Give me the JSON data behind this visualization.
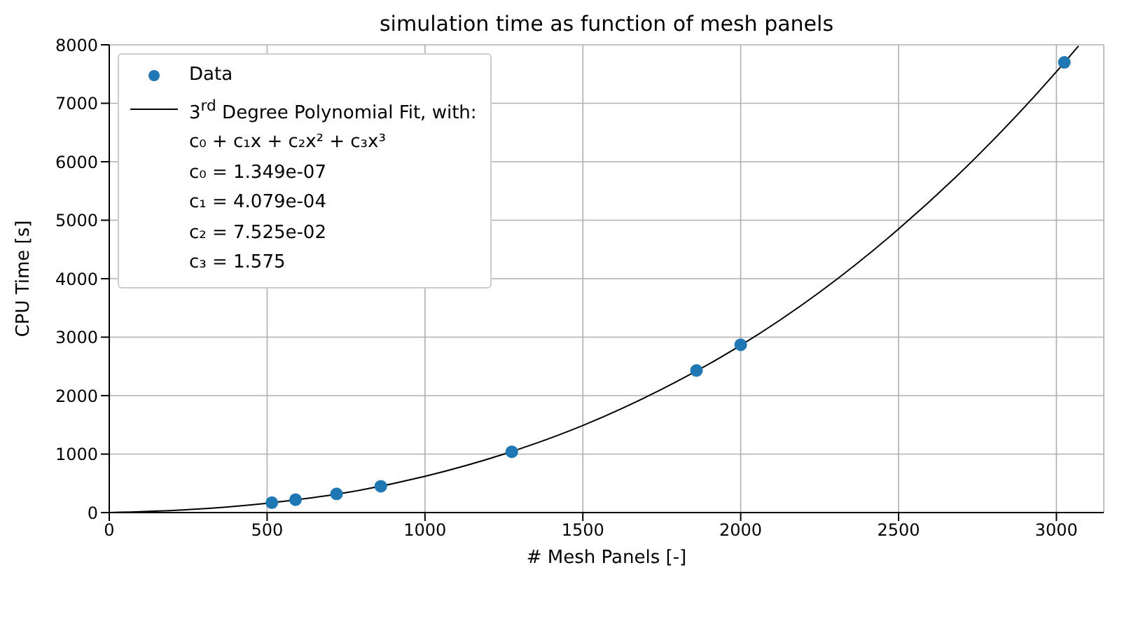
{
  "chart_data": {
    "type": "scatter",
    "title": "simulation time as function of mesh panels",
    "xlabel": "# Mesh Panels [-]",
    "ylabel": "CPU Time [s]",
    "xlim": [
      0,
      3150
    ],
    "xticks": [
      0,
      500,
      1000,
      1500,
      2000,
      2500,
      3000
    ],
    "ylim": [
      0,
      8000
    ],
    "yticks": [
      0,
      1000,
      2000,
      3000,
      4000,
      5000,
      6000,
      7000,
      8000
    ],
    "grid": true,
    "legend": "top left",
    "marker": "circle",
    "series": [
      {
        "name": "Data",
        "color": "#1f77b4",
        "x": [
          515,
          590,
          720,
          860,
          1275,
          1860,
          2000,
          3025
        ],
        "values": [
          170,
          220,
          320,
          450,
          1040,
          2430,
          2870,
          7700
        ]
      },
      {
        "name": "3$^{rd}$ Degree Polynomial Fit, with:",
        "type": "line",
        "marker": "none",
        "color": "#000000",
        "line_style": "solid",
        "x": [
          0,
          250,
          500,
          750,
          1000,
          1250,
          1500,
          1750,
          2000,
          2250,
          2500,
          2750,
          3000,
          3070
        ],
        "values": [
          0,
          50,
          160,
          340,
          620,
          1000,
          1490,
          2110,
          2860,
          3770,
          4850,
          6100,
          7540,
          7980
        ]
      }
    ],
    "annotations": [
      "c₀ + c₁x + c₂x² + c₃x³",
      "c₀ = 1.349e-07",
      "c₁ = 4.079e-04",
      "c₂ = 7.525e-02",
      "c₃ = 1.575"
    ]
  }
}
